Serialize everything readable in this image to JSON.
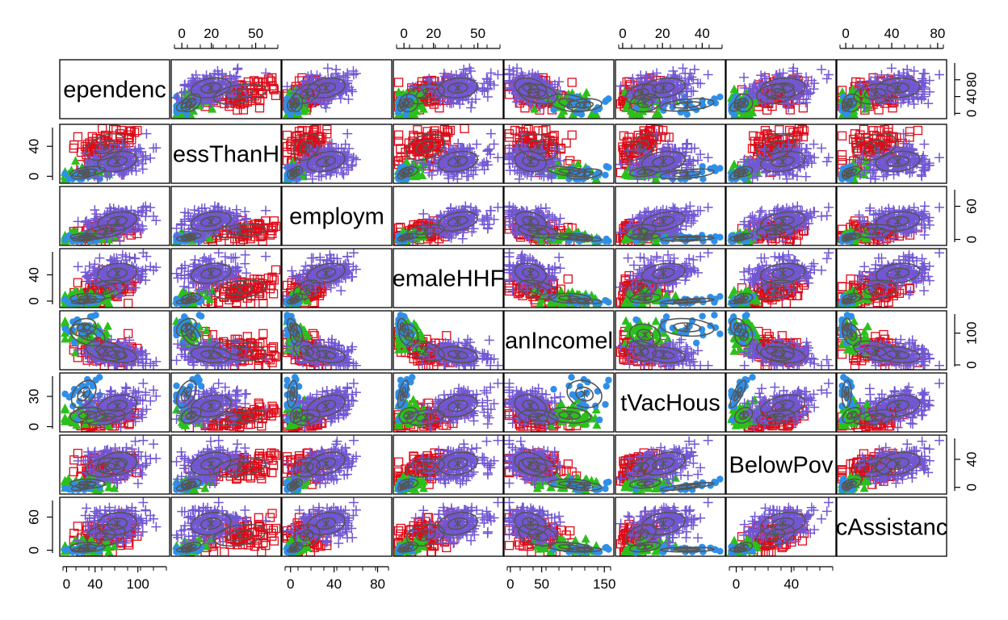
{
  "chart_data": {
    "type": "scatter",
    "title": "",
    "variables": [
      "ependenc",
      "essThanH",
      "employm",
      "emaleHHF",
      "anIncomel",
      "tVacHous",
      "BelowPov",
      "cAssistanc"
    ],
    "groups": [
      {
        "marker": "square",
        "color": "#DF0B19"
      },
      {
        "marker": "triangle",
        "color": "#2BC01B"
      },
      {
        "marker": "circle",
        "color": "#2F8FE8"
      },
      {
        "marker": "plus",
        "color": "#7257D3"
      }
    ],
    "ellipse_color": "#555555",
    "axes": {
      "top": [
        {
          "column": 2,
          "ticks": [
            0,
            20,
            50
          ],
          "range": [
            -5,
            65
          ]
        },
        {
          "column": 4,
          "ticks": [
            0,
            20,
            50
          ],
          "range": [
            -5,
            65
          ]
        },
        {
          "column": 6,
          "ticks": [
            0,
            20,
            40
          ],
          "range": [
            -2,
            50
          ]
        },
        {
          "column": 8,
          "ticks": [
            0,
            40,
            80
          ],
          "range": [
            -5,
            85
          ]
        }
      ],
      "bottom": [
        {
          "column": 1,
          "ticks": [
            0,
            40,
            100
          ],
          "range": [
            -5,
            140
          ]
        },
        {
          "column": 3,
          "ticks": [
            0,
            40,
            80
          ],
          "range": [
            -5,
            90
          ]
        },
        {
          "column": 5,
          "ticks": [
            0,
            50,
            150
          ],
          "range": [
            -5,
            160
          ]
        },
        {
          "column": 7,
          "ticks": [
            0,
            40
          ],
          "range": [
            -5,
            70
          ]
        }
      ],
      "left": [
        {
          "row": 2,
          "ticks": [
            0,
            40
          ],
          "range": [
            -5,
            65
          ]
        },
        {
          "row": 4,
          "ticks": [
            0,
            40
          ],
          "range": [
            -5,
            75
          ]
        },
        {
          "row": 6,
          "ticks": [
            0,
            30
          ],
          "range": [
            -2,
            50
          ]
        },
        {
          "row": 8,
          "ticks": [
            0,
            60
          ],
          "range": [
            -5,
            90
          ]
        }
      ],
      "right": [
        {
          "row": 1,
          "ticks": [
            0,
            40,
            80
          ],
          "range": [
            -5,
            120
          ]
        },
        {
          "row": 3,
          "ticks": [
            0,
            60
          ],
          "range": [
            -5,
            90
          ]
        },
        {
          "row": 5,
          "ticks": [
            0,
            100
          ],
          "range": [
            -5,
            160
          ]
        },
        {
          "row": 7,
          "ticks": [
            0,
            40
          ],
          "range": [
            -5,
            70
          ]
        }
      ]
    },
    "grid": false,
    "legend": "none"
  }
}
